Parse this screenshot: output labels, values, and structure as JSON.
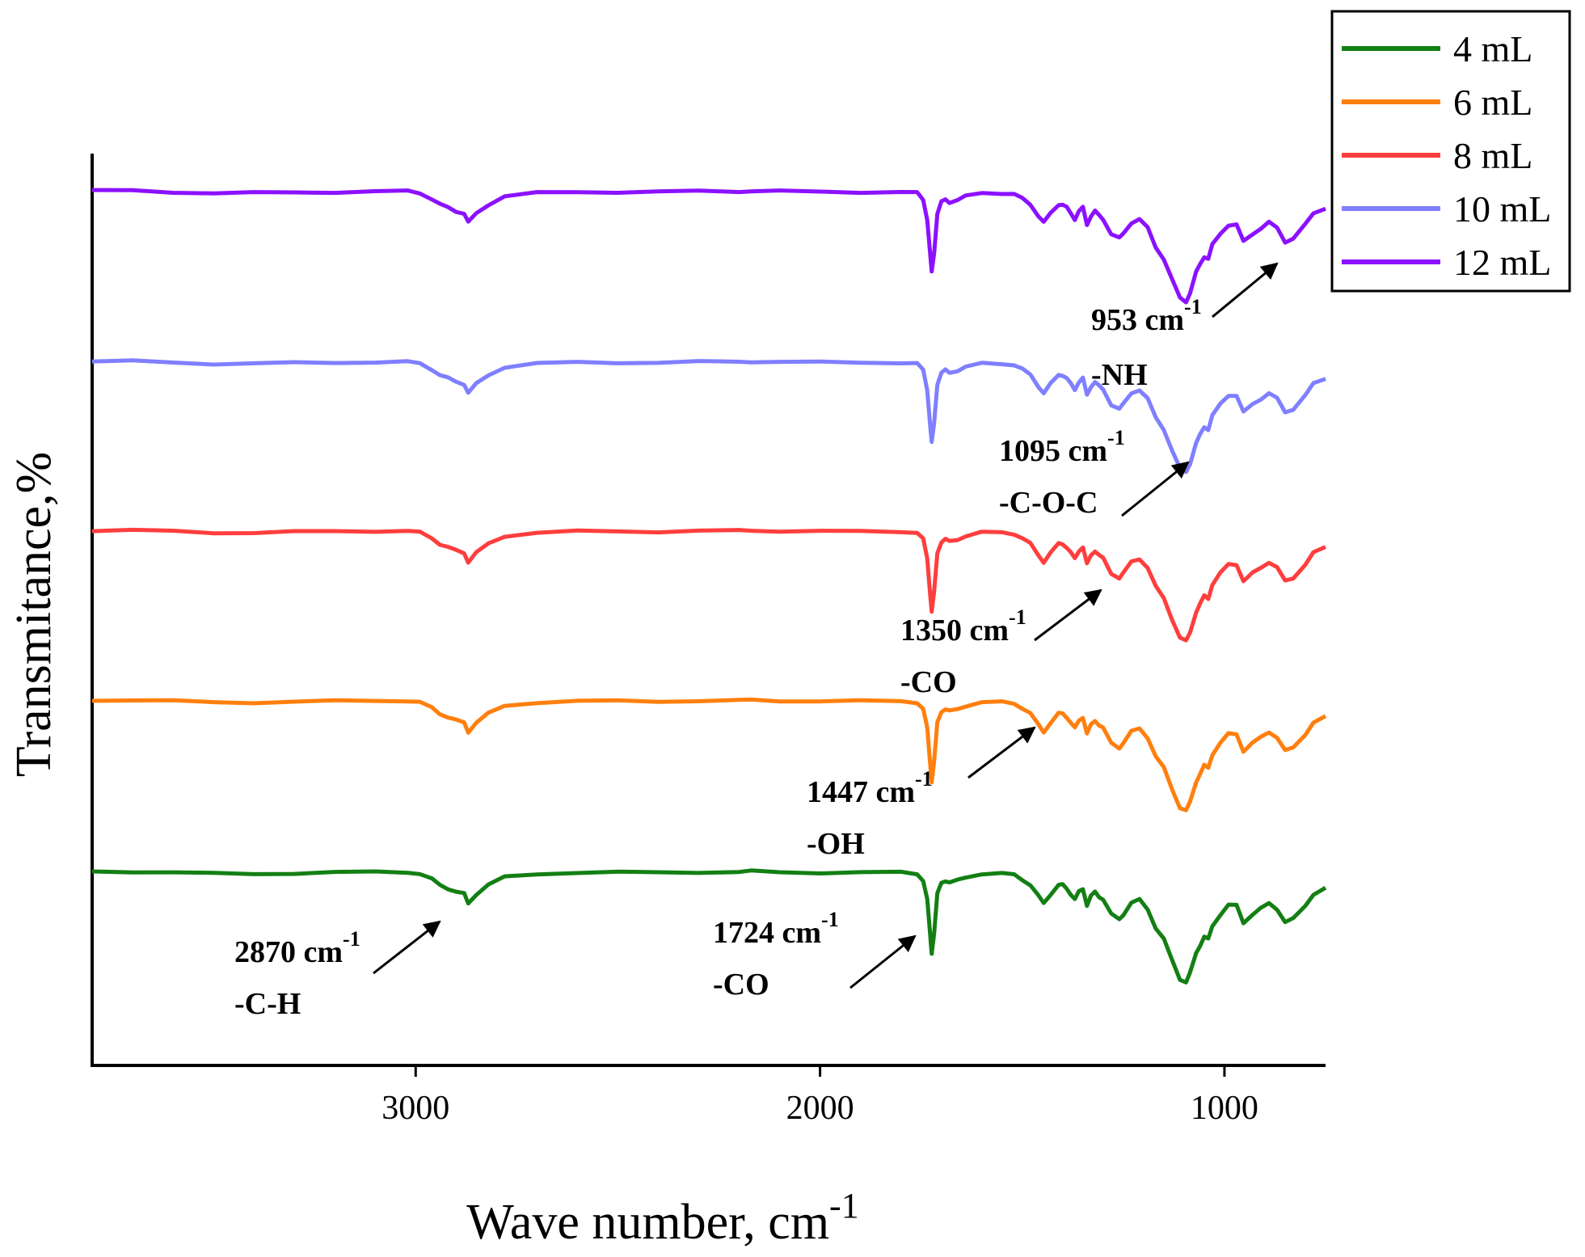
{
  "chart_data": {
    "type": "line",
    "title": "",
    "xlabel": "Wave number, cm",
    "xlabel_sup": "-1",
    "ylabel": "Transmitance,%",
    "xlim": [
      3800,
      750
    ],
    "x_reversed": true,
    "x_ticks": [
      3000,
      2000,
      1000
    ],
    "y_ticks_shown": false,
    "grid": false,
    "legend_position": "top-right",
    "series": [
      {
        "name": "4 mL",
        "color": "#137f13"
      },
      {
        "name": "6 mL",
        "color": "#ff7f0e"
      },
      {
        "name": "8 mL",
        "color": "#ff3e3e"
      },
      {
        "name": "10 mL",
        "color": "#7f7fff"
      },
      {
        "name": "12 mL",
        "color": "#8b11ff"
      }
    ],
    "profile_x": [
      3800,
      3700,
      3600,
      3500,
      3400,
      3300,
      3200,
      3100,
      3020,
      2990,
      2960,
      2940,
      2920,
      2900,
      2880,
      2870,
      2850,
      2820,
      2780,
      2700,
      2600,
      2500,
      2400,
      2300,
      2200,
      2170,
      2100,
      2000,
      1900,
      1800,
      1760,
      1745,
      1735,
      1728,
      1724,
      1718,
      1710,
      1700,
      1690,
      1680,
      1660,
      1640,
      1600,
      1550,
      1520,
      1500,
      1480,
      1460,
      1447,
      1430,
      1410,
      1400,
      1390,
      1380,
      1370,
      1360,
      1350,
      1340,
      1330,
      1320,
      1310,
      1300,
      1280,
      1260,
      1250,
      1230,
      1210,
      1190,
      1170,
      1150,
      1130,
      1110,
      1095,
      1085,
      1070,
      1060,
      1050,
      1040,
      1030,
      1010,
      990,
      970,
      953,
      930,
      910,
      890,
      870,
      850,
      830,
      800,
      780,
      750
    ],
    "profile_depth": [
      0,
      0,
      0.01,
      0.02,
      0.02,
      0.015,
      0.01,
      0.005,
      0.005,
      0.02,
      0.07,
      0.12,
      0.15,
      0.18,
      0.2,
      0.28,
      0.2,
      0.12,
      0.05,
      0.02,
      0.01,
      0.01,
      0.01,
      0.005,
      0.005,
      0,
      0.005,
      0.01,
      0.01,
      0.01,
      0.02,
      0.08,
      0.25,
      0.55,
      0.72,
      0.55,
      0.2,
      0.1,
      0.08,
      0.1,
      0.08,
      0.05,
      0.02,
      0.02,
      0.03,
      0.07,
      0.12,
      0.22,
      0.28,
      0.2,
      0.12,
      0.12,
      0.15,
      0.2,
      0.25,
      0.18,
      0.15,
      0.3,
      0.22,
      0.18,
      0.22,
      0.25,
      0.38,
      0.42,
      0.38,
      0.28,
      0.25,
      0.33,
      0.5,
      0.6,
      0.78,
      0.95,
      0.98,
      0.9,
      0.72,
      0.65,
      0.58,
      0.6,
      0.48,
      0.38,
      0.3,
      0.3,
      0.45,
      0.38,
      0.33,
      0.28,
      0.33,
      0.45,
      0.42,
      0.3,
      0.2,
      0.15
    ],
    "annotations": [
      {
        "text": "2870 cm",
        "sup": "-1",
        "group": "-C-H",
        "wavenumber": 2870
      },
      {
        "text": "1724 cm",
        "sup": "-1",
        "group": "-CO",
        "wavenumber": 1724
      },
      {
        "text": "1447 cm",
        "sup": "-1",
        "group": "-OH",
        "wavenumber": 1447
      },
      {
        "text": "1350 cm",
        "sup": "-1",
        "group": "-CO",
        "wavenumber": 1350
      },
      {
        "text": "1095 cm",
        "sup": "-1",
        "group": "-C-O-C",
        "wavenumber": 1095
      },
      {
        "text": "953 cm",
        "sup": "-1",
        "group": "-NH",
        "wavenumber": 953
      }
    ]
  }
}
